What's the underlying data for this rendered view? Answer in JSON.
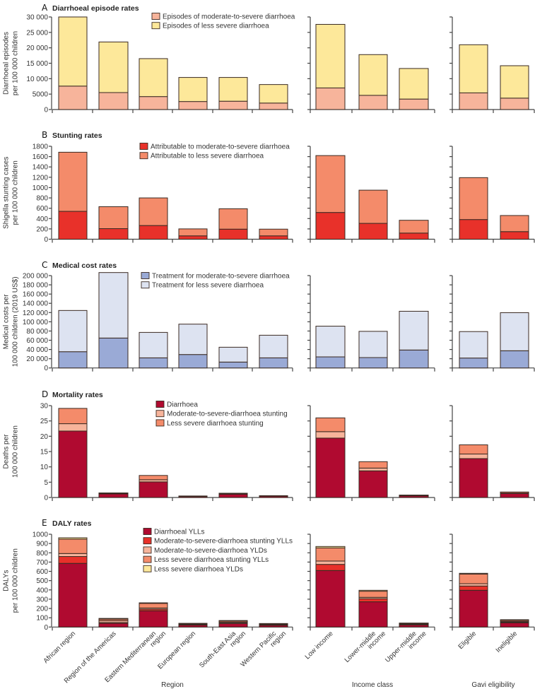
{
  "chart_data": {
    "type": "bar",
    "stacked": true,
    "groups": [
      {
        "name": "Region",
        "categories": [
          "African region",
          "Region of the Americas",
          "Eastern Mediterranean region",
          "European region",
          "South-East Asia region",
          "Western Pacific region"
        ]
      },
      {
        "name": "Income class",
        "categories": [
          "Low income",
          "Lower-middle income",
          "Upper-middle income"
        ]
      },
      {
        "name": "Gavi eligibility",
        "categories": [
          "Eligible",
          "Ineligible"
        ]
      }
    ],
    "x_label_lines": {
      "African region": [
        "African region"
      ],
      "Region of the Americas": [
        "Region of the Americas"
      ],
      "Eastern Mediterranean region": [
        "Eastern Mediterranean",
        "region"
      ],
      "European region": [
        "European region"
      ],
      "South-East Asia region": [
        "South-East Asia",
        "region"
      ],
      "Western Pacific region": [
        "Western Pacific",
        "region"
      ],
      "Low income": [
        "Low income"
      ],
      "Lower-middle income": [
        "Lower-middle",
        "income"
      ],
      "Upper-middle income": [
        "Upper-middle",
        "income"
      ],
      "Eligible": [
        "Eligible"
      ],
      "Ineligible": [
        "Ineligible"
      ]
    },
    "panels": [
      {
        "letter": "A",
        "title": "Diarrhoeal episode rates",
        "ylabel": [
          "Diarrhoeal episodes",
          "per 100 000 children"
        ],
        "ylim": [
          0,
          30000
        ],
        "yticks": [
          0,
          5000,
          10000,
          15000,
          20000,
          25000,
          30000
        ],
        "ytick_labels": [
          "0",
          "5000",
          "10 000",
          "15 000",
          "20 000",
          "25 000",
          "30 000"
        ],
        "legend_position": "top-right",
        "series": [
          {
            "name": "Episodes of moderate-to-severe diarrhoea",
            "color": "#F7B49B",
            "values": [
              7600,
              5500,
              4200,
              2600,
              2700,
              2100,
              7000,
              4600,
              3400,
              5400,
              3700
            ]
          },
          {
            "name": "Episodes of less severe diarrhoea",
            "color": "#FDE89A",
            "values": [
              22400,
              16400,
              12300,
              7800,
              7700,
              6000,
              20600,
              13200,
              9900,
              15600,
              10500
            ]
          }
        ]
      },
      {
        "letter": "B",
        "title": "Stunting rates",
        "ylabel": [
          "Shigella stunting cases",
          "per 100 000 children"
        ],
        "ylim": [
          0,
          1800
        ],
        "yticks": [
          0,
          200,
          400,
          600,
          800,
          1000,
          1200,
          1400,
          1600,
          1800
        ],
        "ytick_labels": [
          "0",
          "200",
          "400",
          "600",
          "800",
          "1000",
          "1200",
          "1400",
          "1600",
          "1800"
        ],
        "legend_position": "top-right",
        "series": [
          {
            "name": "Attributable to moderate-to-severe diarrhoea",
            "color": "#E8312A",
            "values": [
              540,
              205,
              265,
              65,
              195,
              65,
              518,
              307,
              119,
              381,
              147
            ]
          },
          {
            "name": "Attributable to less severe diarrhoea",
            "color": "#F48B6A",
            "values": [
              1145,
              425,
              535,
              135,
              395,
              130,
              1102,
              643,
              248,
              812,
              312
            ]
          }
        ]
      },
      {
        "letter": "C",
        "title": "Medical cost rates",
        "ylabel": [
          "Medical costs per",
          "100 000 children (2019 US$)"
        ],
        "ylim": [
          0,
          200000
        ],
        "yticks": [
          0,
          20000,
          40000,
          60000,
          80000,
          100000,
          120000,
          140000,
          160000,
          180000,
          200000
        ],
        "ytick_labels": [
          "0",
          "20 000",
          "40 000",
          "60 000",
          "80 000",
          "100 000",
          "120 000",
          "140 000",
          "160 000",
          "180 000",
          "200 000"
        ],
        "legend_position": "top-right",
        "series": [
          {
            "name": "Treatment for moderate-to-severe diarrhoea",
            "color": "#9AAAD6",
            "values": [
              35200,
              64800,
              21900,
              29100,
              12800,
              21900,
              24000,
              22500,
              38900,
              21500,
              37300
            ]
          },
          {
            "name": "Treatment for less severe diarrhoea",
            "color": "#DDE3F1",
            "values": [
              89300,
              141800,
              55100,
              65800,
              32100,
              49000,
              66500,
              56800,
              83900,
              57300,
              82400
            ]
          }
        ]
      },
      {
        "letter": "D",
        "title": "Mortality rates",
        "ylabel": [
          "Deaths per",
          "100 000 children"
        ],
        "ylim": [
          0,
          30
        ],
        "yticks": [
          0,
          5,
          10,
          15,
          20,
          25,
          30
        ],
        "ytick_labels": [
          "0",
          "5",
          "10",
          "15",
          "20",
          "25",
          "30"
        ],
        "legend_position": "top-right",
        "series": [
          {
            "name": "Diarrhoea",
            "color": "#B00A30",
            "values": [
              21.7,
              1.2,
              5.1,
              0.4,
              1.1,
              0.5,
              19.4,
              8.7,
              0.6,
              12.7,
              1.3
            ]
          },
          {
            "name": "Moderate-to-severe-diarrhoea stunting",
            "color": "#F7B49B",
            "values": [
              2.4,
              0.1,
              0.7,
              0.03,
              0.1,
              0.03,
              2.1,
              0.9,
              0.05,
              1.5,
              0.15
            ]
          },
          {
            "name": "Less severe diarrhoea stunting",
            "color": "#F48B6A",
            "values": [
              5.0,
              0.2,
              1.4,
              0.07,
              0.2,
              0.07,
              4.5,
              2.1,
              0.15,
              3.0,
              0.35
            ]
          }
        ]
      },
      {
        "letter": "E",
        "title": "DALY rates",
        "ylabel": [
          "DALYs",
          "per 100 000 children"
        ],
        "ylim": [
          0,
          1000
        ],
        "yticks": [
          0,
          100,
          200,
          300,
          400,
          500,
          600,
          700,
          800,
          900,
          1000
        ],
        "ytick_labels": [
          "0",
          "100",
          "200",
          "300",
          "400",
          "500",
          "600",
          "700",
          "800",
          "900",
          "1000"
        ],
        "legend_position": "top-right",
        "series": [
          {
            "name": "Diarrhoeal YLLs",
            "color": "#B00A30",
            "values": [
              686,
              40,
              175,
              22,
              38,
              20,
              609,
              272,
              24,
              396,
              46
            ]
          },
          {
            "name": "Moderate-to-severe-diarrhoea stunting YLLs",
            "color": "#E8312A",
            "values": [
              74,
              8,
              17,
              3,
              5,
              3,
              66,
              33,
              3,
              46,
              6
            ]
          },
          {
            "name": "Moderate-to-severe-diarrhoea YLDs",
            "color": "#F7B49B",
            "values": [
              32,
              20,
              13,
              4,
              9,
              4,
              36,
              15,
              4,
              25,
              8
            ]
          },
          {
            "name": "Less severe diarrhoea stunting YLLs",
            "color": "#F48B6A",
            "values": [
              155,
              17,
              50,
              6,
              12,
              6,
              142,
              66,
              7,
              104,
              12
            ]
          },
          {
            "name": "Less severe diarrhoea YLDs",
            "color": "#FDE89A",
            "values": [
              15,
              8,
              6,
              5,
              6,
              5,
              15,
              10,
              5,
              8,
              7
            ]
          }
        ]
      }
    ]
  }
}
